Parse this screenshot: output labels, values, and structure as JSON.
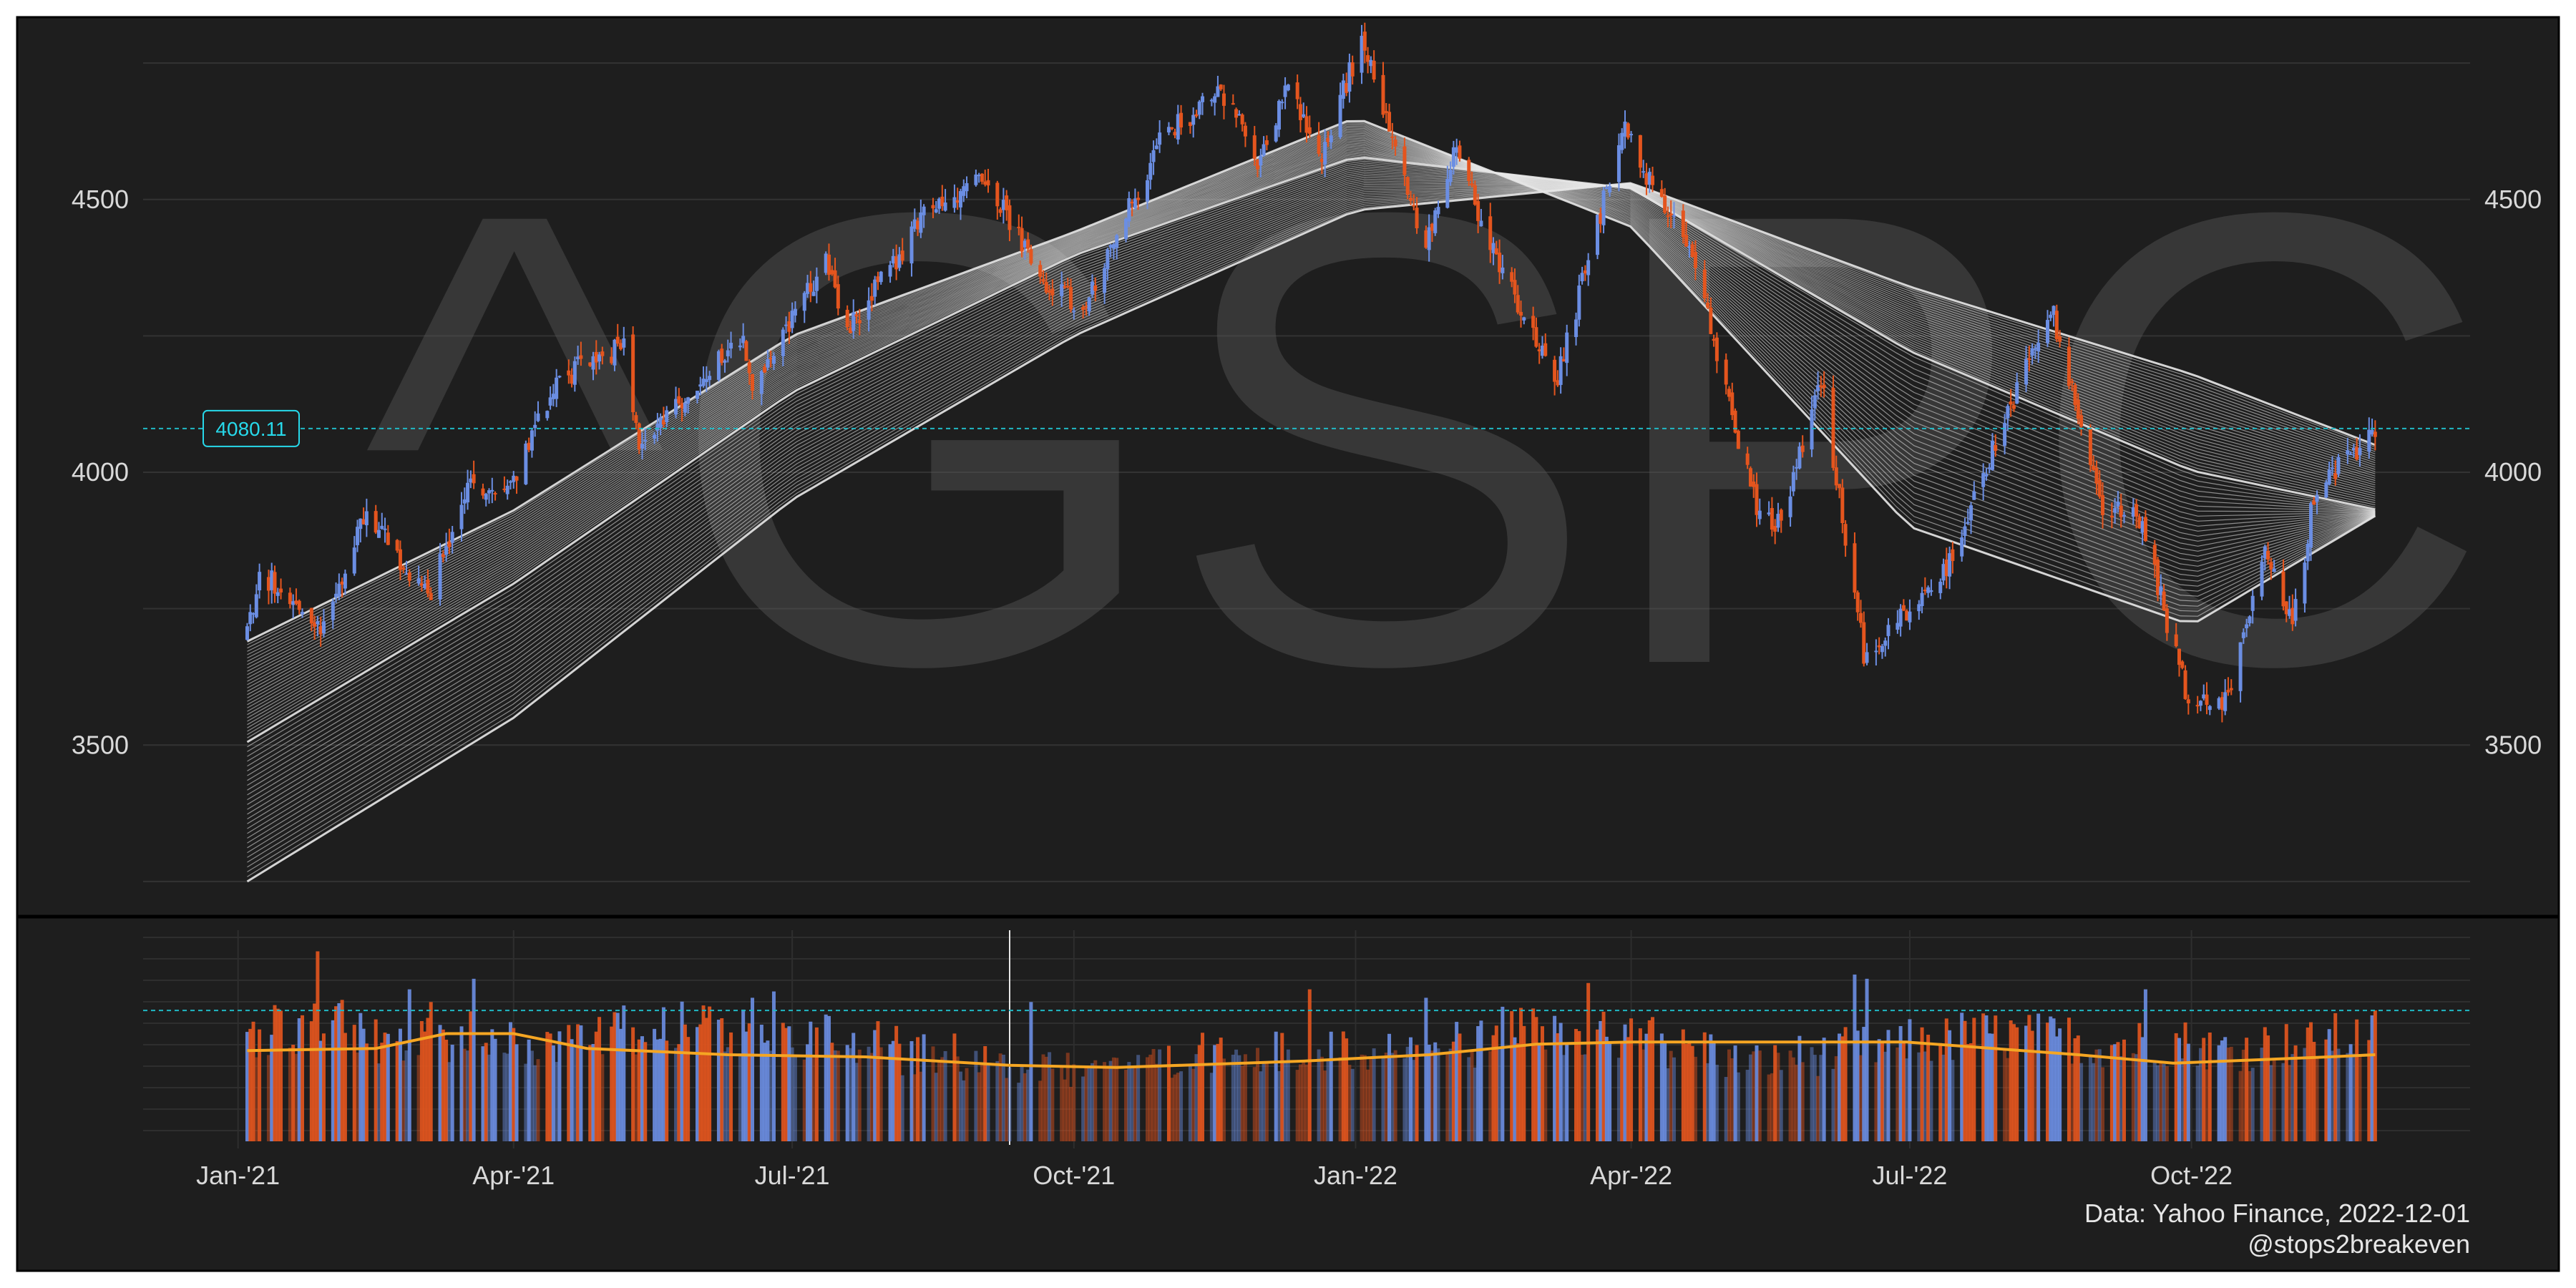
{
  "chart_data": {
    "type": "candlestick",
    "symbol": "^GSPC",
    "watermark": "^GSPC",
    "last_close_label": "4080.11",
    "last_close": 4080.11,
    "price_axis": {
      "ticks": [
        3500,
        4000,
        4500
      ],
      "tick_labels": [
        "3500",
        "4000",
        "4500"
      ],
      "ylim": [
        3200,
        4800
      ]
    },
    "x_axis": {
      "ticks": [
        "2021-01-01",
        "2021-04-01",
        "2021-07-01",
        "2021-10-01",
        "2022-01-01",
        "2022-04-01",
        "2022-07-01",
        "2022-10-01"
      ],
      "tick_labels": [
        "Jan-'21",
        "Apr-'21",
        "Jul-'21",
        "Oct-'21",
        "Jan-'22",
        "Apr-'22",
        "Jul-'22",
        "Oct-'22"
      ],
      "range": [
        "2020-12-01",
        "2022-12-31"
      ]
    },
    "close_path": [
      [
        "2021-01-04",
        3700
      ],
      [
        "2021-01-08",
        3820
      ],
      [
        "2021-01-29",
        3714
      ],
      [
        "2021-02-12",
        3934
      ],
      [
        "2021-03-04",
        3768
      ],
      [
        "2021-03-17",
        3974
      ],
      [
        "2021-03-31",
        3973
      ],
      [
        "2021-04-15",
        4170
      ],
      [
        "2021-05-07",
        4232
      ],
      [
        "2021-05-12",
        4063
      ],
      [
        "2021-06-15",
        4246
      ],
      [
        "2021-06-18",
        4166
      ],
      [
        "2021-07-12",
        4384
      ],
      [
        "2021-07-19",
        4258
      ],
      [
        "2021-08-13",
        4468
      ],
      [
        "2021-09-02",
        4537
      ],
      [
        "2021-09-20",
        4358
      ],
      [
        "2021-10-04",
        4300
      ],
      [
        "2021-10-29",
        4605
      ],
      [
        "2021-11-18",
        4704
      ],
      [
        "2021-11-30",
        4567
      ],
      [
        "2021-12-10",
        4712
      ],
      [
        "2021-12-20",
        4568
      ],
      [
        "2022-01-03",
        4796
      ],
      [
        "2022-01-24",
        4410
      ],
      [
        "2022-02-02",
        4589
      ],
      [
        "2022-02-24",
        4288
      ],
      [
        "2022-03-08",
        4170
      ],
      [
        "2022-03-29",
        4631
      ],
      [
        "2022-04-21",
        4393
      ],
      [
        "2022-05-12",
        3930
      ],
      [
        "2022-05-20",
        3901
      ],
      [
        "2022-06-02",
        4176
      ],
      [
        "2022-06-16",
        3666
      ],
      [
        "2022-07-12",
        3818
      ],
      [
        "2022-08-16",
        4305
      ],
      [
        "2022-09-02",
        3924
      ],
      [
        "2022-09-13",
        3932
      ],
      [
        "2022-09-30",
        3585
      ],
      [
        "2022-10-12",
        3577
      ],
      [
        "2022-10-25",
        3859
      ],
      [
        "2022-11-03",
        3720
      ],
      [
        "2022-11-10",
        3956
      ],
      [
        "2022-11-30",
        4080
      ]
    ],
    "ma_ribbon": {
      "lines": 60,
      "series": [
        {
          "points": [
            [
              "2021-01-04",
              3690
            ],
            [
              "2021-04-01",
              3930
            ],
            [
              "2021-07-01",
              4250
            ],
            [
              "2021-10-01",
              4440
            ],
            [
              "2022-01-01",
              4650
            ],
            [
              "2022-04-01",
              4450
            ],
            [
              "2022-07-01",
              3900
            ],
            [
              "2022-10-01",
              3720
            ],
            [
              "2022-11-30",
              3920
            ]
          ]
        },
        {
          "points": [
            [
              "2021-01-04",
              3510
            ],
            [
              "2021-04-01",
              3800
            ],
            [
              "2021-07-01",
              4150
            ],
            [
              "2021-10-01",
              4400
            ],
            [
              "2022-01-01",
              4580
            ],
            [
              "2022-04-01",
              4520
            ],
            [
              "2022-07-01",
              4220
            ],
            [
              "2022-10-01",
              4000
            ],
            [
              "2022-11-30",
              3930
            ]
          ]
        },
        {
          "points": [
            [
              "2021-01-04",
              3250
            ],
            [
              "2021-04-01",
              3550
            ],
            [
              "2021-07-01",
              3950
            ],
            [
              "2021-10-01",
              4250
            ],
            [
              "2022-01-01",
              4480
            ],
            [
              "2022-04-01",
              4530
            ],
            [
              "2022-07-01",
              4340
            ],
            [
              "2022-10-01",
              4180
            ],
            [
              "2022-11-30",
              4050
            ]
          ]
        }
      ]
    },
    "volume": {
      "levels": [
        0.52,
        0.55,
        0.47,
        0.5,
        0.46,
        0.48,
        0.52,
        0.54,
        0.52,
        0.49,
        0.46,
        0.41,
        0.37,
        0.34,
        0.36,
        0.38,
        0.42,
        0.44,
        0.42,
        0.43,
        0.46,
        0.51,
        0.5,
        0.49,
        0.44,
        0.38,
        0.41,
        0.44,
        0.48,
        0.5,
        0.49,
        0.46,
        0.47,
        0.44,
        0.46,
        0.49
      ],
      "spikes": [
        [
          "2021-01-27",
          0.9
        ],
        [
          "2021-02-02",
          0.64
        ],
        [
          "2021-02-26",
          0.72
        ],
        [
          "2021-03-05",
          0.66
        ],
        [
          "2021-03-19",
          0.77
        ],
        [
          "2021-06-18",
          0.68
        ],
        [
          "2021-06-25",
          0.71
        ],
        [
          "2021-09-17",
          0.66
        ],
        [
          "2021-12-17",
          0.72
        ],
        [
          "2022-01-24",
          0.68
        ],
        [
          "2022-03-18",
          0.75
        ],
        [
          "2022-06-13",
          0.79
        ],
        [
          "2022-06-17",
          0.77
        ],
        [
          "2022-09-16",
          0.72
        ],
        [
          "2022-11-30",
          0.62
        ]
      ],
      "avg_line": [
        [
          "2021-01-04",
          0.43
        ],
        [
          "2021-02-15",
          0.44
        ],
        [
          "2021-03-10",
          0.51
        ],
        [
          "2021-04-01",
          0.51
        ],
        [
          "2021-04-25",
          0.44
        ],
        [
          "2021-06-10",
          0.41
        ],
        [
          "2021-07-25",
          0.4
        ],
        [
          "2021-09-10",
          0.36
        ],
        [
          "2021-10-15",
          0.35
        ],
        [
          "2021-12-15",
          0.38
        ],
        [
          "2022-01-25",
          0.41
        ],
        [
          "2022-03-01",
          0.46
        ],
        [
          "2022-04-01",
          0.47
        ],
        [
          "2022-05-15",
          0.47
        ],
        [
          "2022-06-30",
          0.47
        ],
        [
          "2022-08-25",
          0.41
        ],
        [
          "2022-09-25",
          0.37
        ],
        [
          "2022-11-15",
          0.4
        ],
        [
          "2022-11-30",
          0.41
        ]
      ],
      "reference_line": 0.62
    },
    "credit_lines": [
      "Data: Yahoo Finance, 2022-12-01",
      "@stops2breakeven"
    ],
    "colors": {
      "background": "#1e1e1e",
      "outer_frame": "#ffffff",
      "up": "#6b8ee3",
      "down": "#e4551e",
      "ma_line": "#e8e8e8",
      "price_line": "#20b9c5",
      "label": "#27d9ea",
      "volume_avg_up": "#1ec8e4",
      "volume_avg_down": "#f5a623",
      "gridline": "#333333",
      "divider": "#000000"
    }
  }
}
